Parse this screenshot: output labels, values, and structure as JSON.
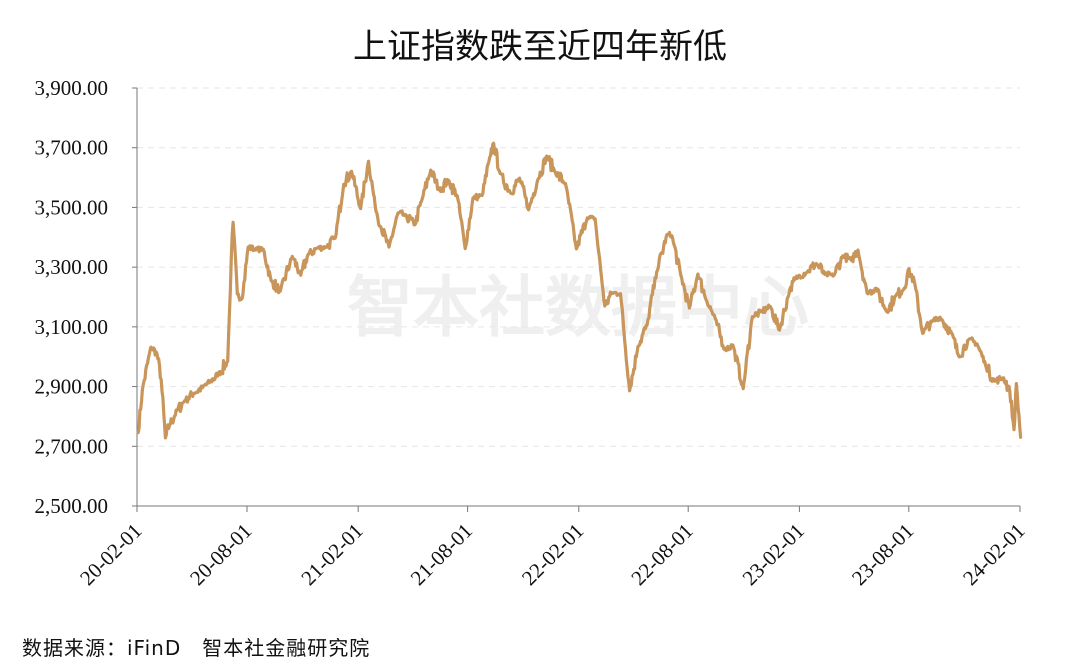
{
  "chart_data": {
    "type": "line",
    "title": "上证指数跌至近四年新低",
    "xlabel": "",
    "ylabel": "",
    "ylim": [
      2500,
      3900
    ],
    "yticks": [
      "2,500.00",
      "2,700.00",
      "2,900.00",
      "3,100.00",
      "3,300.00",
      "3,500.00",
      "3,700.00",
      "3,900.00"
    ],
    "xticks": [
      "20-02-01",
      "20-08-01",
      "21-02-01",
      "21-08-01",
      "22-02-01",
      "22-08-01",
      "23-02-01",
      "23-08-01",
      "24-02-01"
    ],
    "grid": true,
    "line_color": "#c8955a",
    "series": [
      {
        "x": [
          "2020-02-03",
          "2020-02-10",
          "2020-02-24",
          "2020-03-05",
          "2020-03-12",
          "2020-03-19",
          "2020-03-26",
          "2020-04-07",
          "2020-04-20",
          "2020-05-06",
          "2020-05-20",
          "2020-06-01",
          "2020-06-15",
          "2020-06-30",
          "2020-07-03",
          "2020-07-06",
          "2020-07-09",
          "2020-07-16",
          "2020-07-24",
          "2020-08-03",
          "2020-08-14",
          "2020-08-28",
          "2020-09-10",
          "2020-09-25",
          "2020-10-15",
          "2020-10-29",
          "2020-11-10",
          "2020-11-25",
          "2020-12-10",
          "2020-12-25",
          "2021-01-08",
          "2021-01-21",
          "2021-02-05",
          "2021-02-18",
          "2021-03-01",
          "2021-03-10",
          "2021-03-24",
          "2021-04-08",
          "2021-04-20",
          "2021-05-06",
          "2021-05-18",
          "2021-06-01",
          "2021-06-15",
          "2021-06-30",
          "2021-07-15",
          "2021-07-28",
          "2021-08-10",
          "2021-08-25",
          "2021-09-08",
          "2021-09-13",
          "2021-09-24",
          "2021-10-12",
          "2021-10-26",
          "2021-11-10",
          "2021-11-25",
          "2021-12-10",
          "2021-12-24",
          "2022-01-10",
          "2022-01-28",
          "2022-02-15",
          "2022-02-28",
          "2022-03-09",
          "2022-03-16",
          "2022-03-28",
          "2022-04-11",
          "2022-04-26",
          "2022-05-10",
          "2022-05-25",
          "2022-06-10",
          "2022-06-27",
          "2022-07-05",
          "2022-07-20",
          "2022-08-03",
          "2022-08-17",
          "2022-09-01",
          "2022-09-15",
          "2022-09-30",
          "2022-10-14",
          "2022-10-31",
          "2022-11-15",
          "2022-11-30",
          "2022-12-15",
          "2022-12-30",
          "2023-01-16",
          "2023-01-30",
          "2023-02-14",
          "2023-03-01",
          "2023-03-15",
          "2023-03-30",
          "2023-04-14",
          "2023-04-28",
          "2023-05-09",
          "2023-05-24",
          "2023-06-08",
          "2023-06-26",
          "2023-07-10",
          "2023-07-25",
          "2023-07-31",
          "2023-08-10",
          "2023-08-24",
          "2023-09-08",
          "2023-09-22",
          "2023-10-11",
          "2023-10-23",
          "2023-11-08",
          "2023-11-22",
          "2023-12-06",
          "2023-12-21",
          "2024-01-05",
          "2024-01-15",
          "2024-01-22",
          "2024-01-26",
          "2024-02-02"
        ],
        "y": [
          2746,
          2890,
          3032,
          3011,
          2923,
          2728,
          2772,
          2820,
          2853,
          2878,
          2898,
          2916,
          2942,
          2985,
          3152,
          3333,
          3450,
          3210,
          3196,
          3367,
          3360,
          3360,
          3254,
          3219,
          3336,
          3273,
          3342,
          3364,
          3367,
          3397,
          3577,
          3621,
          3496,
          3655,
          3508,
          3436,
          3367,
          3482,
          3472,
          3442,
          3530,
          3625,
          3558,
          3591,
          3539,
          3362,
          3532,
          3540,
          3675,
          3715,
          3613,
          3547,
          3598,
          3492,
          3592,
          3672,
          3618,
          3580,
          3361,
          3465,
          3462,
          3293,
          3170,
          3214,
          3211,
          2886,
          3035,
          3107,
          3285,
          3409,
          3405,
          3272,
          3163,
          3277,
          3185,
          3126,
          3024,
          3039,
          2893,
          3134,
          3151,
          3168,
          3089,
          3224,
          3270,
          3284,
          3312,
          3276,
          3272,
          3338,
          3323,
          3357,
          3213,
          3229,
          3150,
          3203,
          3231,
          3291,
          3254,
          3078,
          3117,
          3132,
          3078,
          3000,
          3057,
          3043,
          2972,
          2918,
          2929,
          2887,
          2756,
          2910,
          2730
        ]
      }
    ]
  },
  "watermark": "智本社数据中心",
  "source": "数据来源：iFinD　智本社金融研究院"
}
